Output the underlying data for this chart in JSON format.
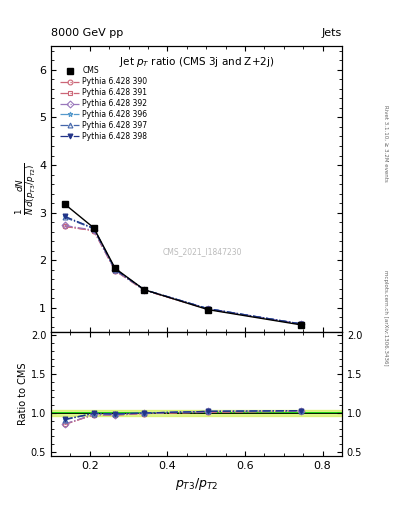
{
  "header_left": "8000 GeV pp",
  "header_right": "Jets",
  "right_label_top": "Rivet 3.1.10, ≥ 3.2M events",
  "right_label_bottom": "mcplots.cern.ch [arXiv:1306.3436]",
  "watermark": "CMS_2021_I1847230",
  "xlabel": "$p_{T3}/p_{T2}$",
  "ylabel_ratio": "Ratio to CMS",
  "xlim": [
    0.1,
    0.85
  ],
  "ylim_main": [
    0.5,
    6.5
  ],
  "ylim_ratio": [
    0.45,
    2.05
  ],
  "yticks_main": [
    1,
    2,
    3,
    4,
    5,
    6
  ],
  "yticks_ratio": [
    0.5,
    1.0,
    1.5,
    2.0
  ],
  "cms_x": [
    0.135,
    0.21,
    0.265,
    0.34,
    0.505,
    0.745
  ],
  "cms_y": [
    3.18,
    2.68,
    1.83,
    1.38,
    0.96,
    0.64
  ],
  "pythia_x": [
    0.135,
    0.21,
    0.265,
    0.34,
    0.505,
    0.745
  ],
  "series": [
    {
      "label": "Pythia 6.428 390",
      "color": "#cc6677",
      "linestyle": "-.",
      "marker": "o",
      "markerfacecolor": "none",
      "y": [
        2.71,
        2.62,
        1.78,
        1.37,
        0.97,
        0.655
      ],
      "ratio": [
        0.853,
        0.978,
        0.973,
        0.993,
        1.01,
        1.023
      ]
    },
    {
      "label": "Pythia 6.428 391",
      "color": "#cc6677",
      "linestyle": "-.",
      "marker": "s",
      "markerfacecolor": "none",
      "y": [
        2.71,
        2.62,
        1.78,
        1.37,
        0.97,
        0.655
      ],
      "ratio": [
        0.853,
        0.978,
        0.973,
        0.993,
        1.01,
        1.023
      ]
    },
    {
      "label": "Pythia 6.428 392",
      "color": "#9977bb",
      "linestyle": "-.",
      "marker": "D",
      "markerfacecolor": "none",
      "y": [
        2.73,
        2.63,
        1.79,
        1.38,
        0.98,
        0.66
      ],
      "ratio": [
        0.859,
        0.981,
        0.978,
        1.0,
        1.021,
        1.031
      ]
    },
    {
      "label": "Pythia 6.428 396",
      "color": "#5599cc",
      "linestyle": "-.",
      "marker": "*",
      "markerfacecolor": "none",
      "y": [
        2.92,
        2.67,
        1.81,
        1.38,
        0.98,
        0.66
      ],
      "ratio": [
        0.918,
        0.996,
        0.989,
        1.0,
        1.021,
        1.031
      ]
    },
    {
      "label": "Pythia 6.428 397",
      "color": "#4466aa",
      "linestyle": "-.",
      "marker": "^",
      "markerfacecolor": "none",
      "y": [
        2.9,
        2.66,
        1.8,
        1.38,
        0.98,
        0.66
      ],
      "ratio": [
        0.912,
        0.993,
        0.984,
        1.0,
        1.021,
        1.031
      ]
    },
    {
      "label": "Pythia 6.428 398",
      "color": "#223388",
      "linestyle": "-.",
      "marker": "v",
      "markerfacecolor": "#223388",
      "y": [
        2.92,
        2.67,
        1.81,
        1.38,
        0.98,
        0.66
      ],
      "ratio": [
        0.918,
        0.996,
        0.989,
        1.0,
        1.021,
        1.031
      ]
    }
  ],
  "cms_color": "black",
  "cms_marker": "s",
  "band_color": "#ccee44",
  "band_alpha": 0.6,
  "band_ylow": 0.965,
  "band_yhigh": 1.035
}
